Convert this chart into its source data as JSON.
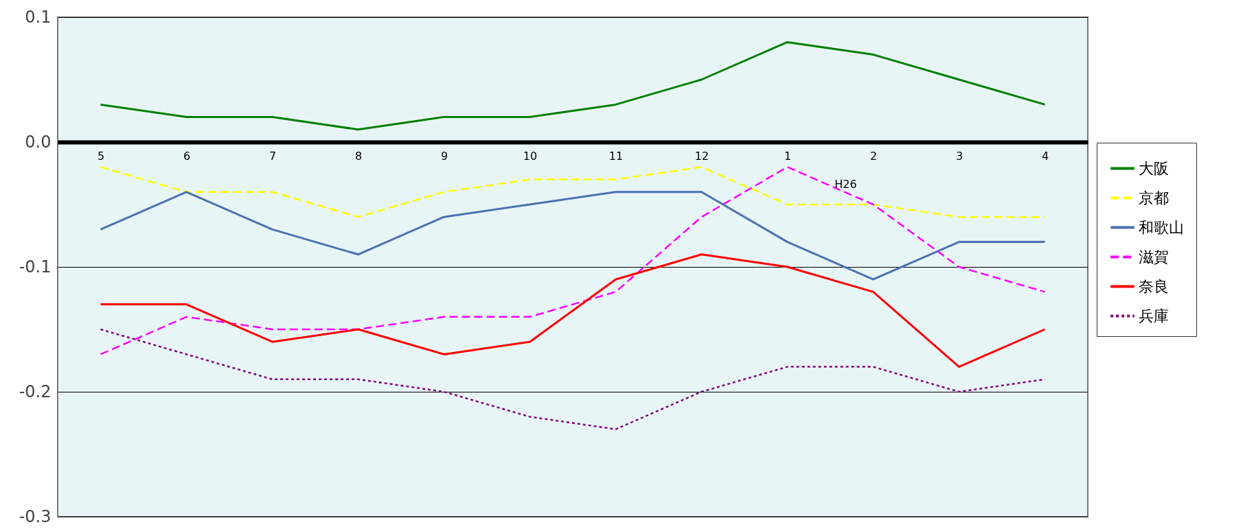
{
  "chart_data": {
    "type": "line",
    "categories": [
      "5",
      "6",
      "7",
      "8",
      "9",
      "10",
      "11",
      "12",
      "1",
      "2",
      "3",
      "4"
    ],
    "series": [
      {
        "name": "大阪",
        "color": "#008000",
        "line_style": "solid",
        "values": [
          0.03,
          0.02,
          0.02,
          0.01,
          0.02,
          0.02,
          0.03,
          0.05,
          0.08,
          0.07,
          0.05,
          0.03
        ]
      },
      {
        "name": "京都",
        "color": "#ffff00",
        "line_style": "dashed",
        "values": [
          -0.02,
          -0.04,
          -0.04,
          -0.06,
          -0.04,
          -0.03,
          -0.03,
          -0.02,
          -0.05,
          -0.05,
          -0.06,
          -0.06
        ]
      },
      {
        "name": "和歌山",
        "color": "#4a72b0",
        "line_style": "solid",
        "values": [
          -0.07,
          -0.04,
          -0.07,
          -0.09,
          -0.06,
          -0.05,
          -0.04,
          -0.04,
          -0.08,
          -0.11,
          -0.08,
          -0.08
        ]
      },
      {
        "name": "滋賀",
        "color": "#ff00ff",
        "line_style": "dashed",
        "values": [
          -0.17,
          -0.14,
          -0.15,
          -0.15,
          -0.14,
          -0.14,
          -0.12,
          -0.06,
          -0.02,
          -0.05,
          -0.1,
          -0.12
        ]
      },
      {
        "name": "奈良",
        "color": "#ff0000",
        "line_style": "solid",
        "values": [
          -0.13,
          -0.13,
          -0.16,
          -0.15,
          -0.17,
          -0.16,
          -0.11,
          -0.09,
          -0.1,
          -0.12,
          -0.18,
          -0.15
        ]
      },
      {
        "name": "兵庫",
        "color": "#800080",
        "line_style": "dotted",
        "values": [
          -0.15,
          -0.17,
          -0.19,
          -0.19,
          -0.2,
          -0.22,
          -0.23,
          -0.2,
          -0.18,
          -0.18,
          -0.2,
          -0.19
        ]
      }
    ],
    "ylim": [
      -0.3,
      0.1
    ],
    "yticks": [
      0.1,
      {
        "value": 0,
        "label": "0.0"
      },
      -0.1,
      -0.2,
      -0.3
    ],
    "grid": "y",
    "legend": "right",
    "annotations": [
      "H26"
    ]
  }
}
